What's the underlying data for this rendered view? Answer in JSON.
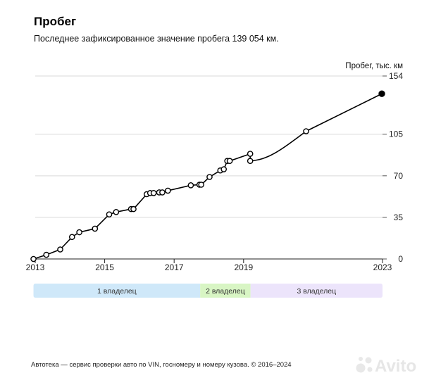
{
  "title": "Пробег",
  "subtitle": "Последнее зафиксированное значение пробега 139 054 км.",
  "footer": "Автотека — сервис проверки авто по VIN, госномеру и номеру кузова. © 2016–2024",
  "logo_text": "Avito",
  "colors": {
    "line": "#000000",
    "grid": "#d9d9d9",
    "owner1": "#cfe8f9",
    "owner2": "#d8f5c4",
    "owner3": "#ece4fb"
  },
  "chart_data": {
    "type": "line",
    "title": "Пробег",
    "ylabel": "Пробег, тыс. км",
    "xlabel": "",
    "ylim": [
      0,
      154
    ],
    "yticks": [
      0,
      35,
      70,
      105,
      154
    ],
    "xlim": [
      2013.0,
      2023.0
    ],
    "xticks": [
      {
        "value": 2013,
        "label": "2013"
      },
      {
        "value": 2015,
        "label": "2015"
      },
      {
        "value": 2017,
        "label": "2017"
      },
      {
        "value": 2019,
        "label": "2019"
      },
      {
        "value": 2023,
        "label": "2023"
      }
    ],
    "series": [
      {
        "name": "Пробег",
        "points": [
          {
            "x": 2012.95,
            "y": 0.0
          },
          {
            "x": 2013.32,
            "y": 3.5
          },
          {
            "x": 2013.72,
            "y": 8.0
          },
          {
            "x": 2014.06,
            "y": 18.5
          },
          {
            "x": 2014.27,
            "y": 22.5
          },
          {
            "x": 2014.72,
            "y": 25.5
          },
          {
            "x": 2015.13,
            "y": 37.5
          },
          {
            "x": 2015.33,
            "y": 39.5
          },
          {
            "x": 2015.76,
            "y": 42.0
          },
          {
            "x": 2015.83,
            "y": 42.0
          },
          {
            "x": 2016.21,
            "y": 54.5
          },
          {
            "x": 2016.31,
            "y": 55.5
          },
          {
            "x": 2016.41,
            "y": 55.5
          },
          {
            "x": 2016.57,
            "y": 56.0
          },
          {
            "x": 2016.66,
            "y": 56.0
          },
          {
            "x": 2016.82,
            "y": 57.5
          },
          {
            "x": 2017.48,
            "y": 62.0
          },
          {
            "x": 2017.73,
            "y": 62.5
          },
          {
            "x": 2017.78,
            "y": 62.5
          },
          {
            "x": 2018.02,
            "y": 69.0
          },
          {
            "x": 2018.33,
            "y": 74.5
          },
          {
            "x": 2018.43,
            "y": 75.5
          },
          {
            "x": 2018.53,
            "y": 82.5
          },
          {
            "x": 2018.6,
            "y": 82.5
          },
          {
            "x": 2019.19,
            "y": 88.5
          },
          {
            "x": 2019.19,
            "y": 82.5
          },
          {
            "x": 2020.8,
            "y": 107.5
          },
          {
            "x": 2022.98,
            "y": 139.054
          }
        ]
      }
    ]
  },
  "owners": [
    {
      "label": "1 владелец",
      "start": 2012.95,
      "end": 2017.75
    },
    {
      "label": "2 владелец",
      "start": 2017.75,
      "end": 2019.2
    },
    {
      "label": "3 владелец",
      "start": 2019.2,
      "end": 2023.0
    }
  ]
}
